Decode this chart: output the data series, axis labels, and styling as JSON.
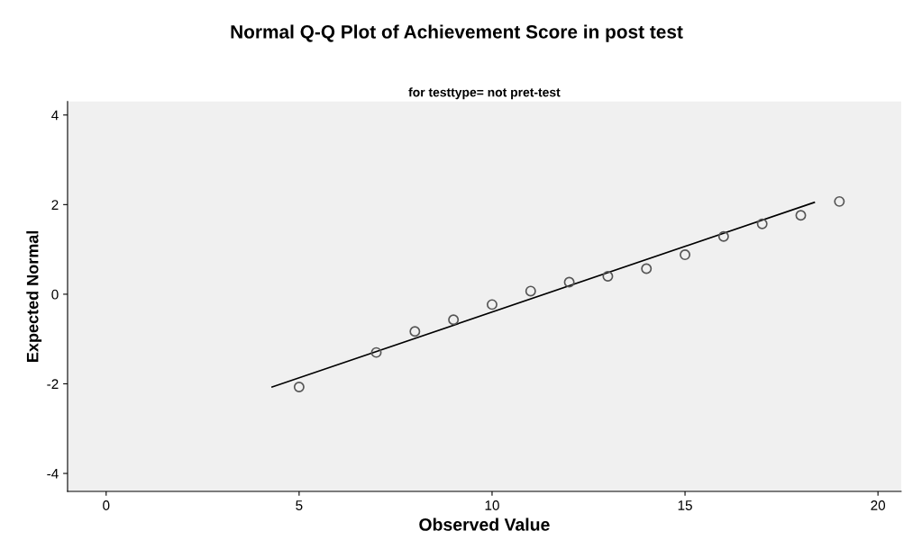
{
  "chart_data": {
    "type": "scatter",
    "title": "Normal Q-Q Plot of Achievement Score in post test",
    "subtitle": "for testtype= not pret-test",
    "xlabel": "Observed Value",
    "ylabel": "Expected Normal",
    "xlim": [
      -1,
      20.6
    ],
    "ylim": [
      -4.4,
      4.3
    ],
    "xticks": [
      0,
      5,
      10,
      15,
      20
    ],
    "yticks": [
      -4,
      -2,
      0,
      2,
      4
    ],
    "grid": false,
    "legend": false,
    "series": [
      {
        "marker": "circle",
        "color": "#555555",
        "x": [
          5,
          7,
          8,
          9,
          10,
          11,
          12,
          13,
          14,
          15,
          16,
          17,
          18,
          19
        ],
        "values": [
          -2.07,
          -1.3,
          -0.83,
          -0.57,
          -0.23,
          0.07,
          0.27,
          0.4,
          0.57,
          0.88,
          1.29,
          1.57,
          1.76,
          2.07
        ]
      },
      {
        "type": "line",
        "marker": "none",
        "line_style": "solid",
        "color": "#000000",
        "x": [
          4.3,
          18.35
        ],
        "values": [
          -2.07,
          2.05
        ]
      }
    ]
  }
}
